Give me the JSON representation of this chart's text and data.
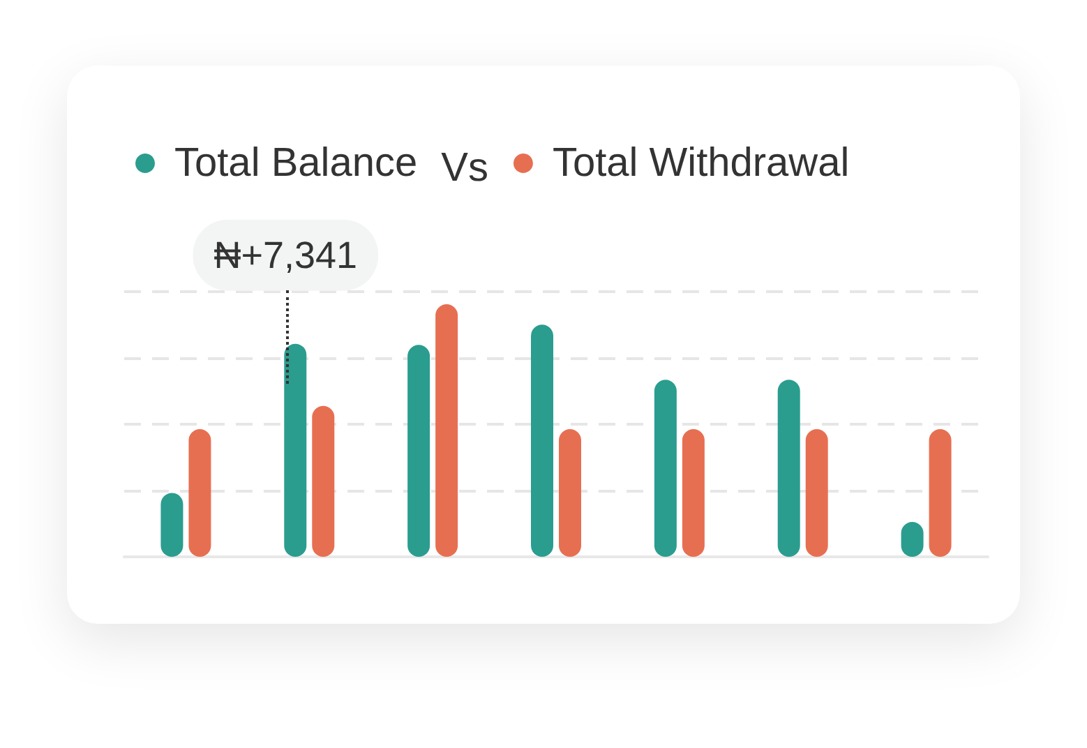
{
  "chart_data": {
    "type": "bar",
    "categories": [
      null,
      null,
      null,
      null,
      null,
      null,
      null
    ],
    "series": [
      {
        "name": "Total Balance",
        "color": "#2a9d8f",
        "values": [
          2200,
          7341,
          7300,
          8000,
          6100,
          6100,
          1200
        ],
        "value_labels": [
          null,
          "₦+7,341",
          null,
          null,
          null,
          null,
          null
        ]
      },
      {
        "name": "Total Withdrawal",
        "color": "#e76f51",
        "values": [
          4400,
          5200,
          8700,
          4400,
          4400,
          4400,
          4400
        ]
      }
    ],
    "annotations": [
      "Vs"
    ],
    "legend": "top left",
    "grid": "y"
  }
}
